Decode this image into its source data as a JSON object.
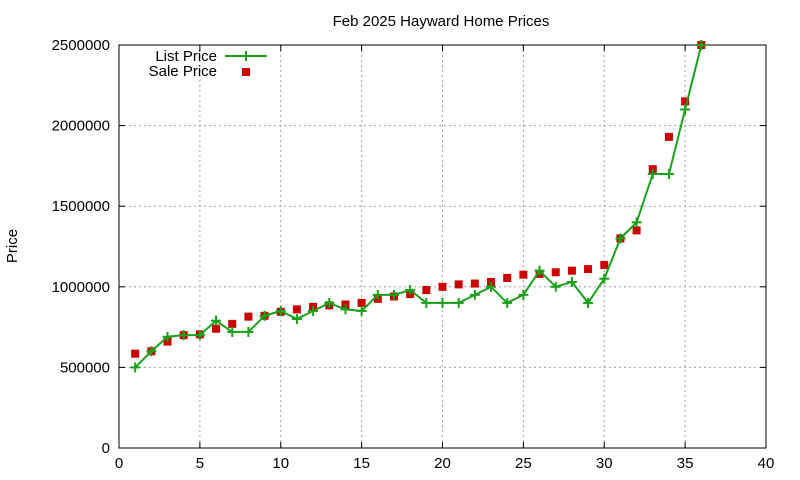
{
  "chart_data": {
    "type": "line",
    "title": "Feb 2025 Hayward Home Prices",
    "xlabel": "",
    "ylabel": "Price",
    "xlim": [
      0,
      40
    ],
    "ylim": [
      0,
      2500000
    ],
    "x_ticks": [
      "0",
      "5",
      "10",
      "15",
      "20",
      "25",
      "30",
      "35",
      "40"
    ],
    "y_ticks": [
      "0",
      "500000",
      "1000000",
      "1500000",
      "2000000",
      "2500000"
    ],
    "grid": true,
    "legend_position": "top-left",
    "series": [
      {
        "name": "List Price",
        "style": "line-with-plus-markers",
        "color": "#1aa01a",
        "x": [
          1,
          2,
          3,
          4,
          5,
          6,
          7,
          8,
          9,
          10,
          11,
          12,
          13,
          14,
          15,
          16,
          17,
          18,
          19,
          20,
          21,
          22,
          23,
          24,
          25,
          26,
          27,
          28,
          29,
          30,
          31,
          32,
          33,
          34,
          35,
          36
        ],
        "y": [
          500000,
          600000,
          690000,
          700000,
          700000,
          790000,
          720000,
          720000,
          820000,
          850000,
          800000,
          850000,
          900000,
          860000,
          850000,
          950000,
          950000,
          980000,
          900000,
          900000,
          900000,
          950000,
          1000000,
          900000,
          950000,
          1100000,
          1000000,
          1030000,
          900000,
          1050000,
          1300000,
          1400000,
          1700000,
          1700000,
          2100000,
          2500000
        ]
      },
      {
        "name": "Sale Price",
        "style": "square-markers",
        "color": "#cc0000",
        "x": [
          1,
          2,
          3,
          4,
          5,
          6,
          7,
          8,
          9,
          10,
          11,
          12,
          13,
          14,
          15,
          16,
          17,
          18,
          19,
          20,
          21,
          22,
          23,
          24,
          25,
          26,
          27,
          28,
          29,
          30,
          31,
          32,
          33,
          34,
          35,
          36
        ],
        "y": [
          585000,
          600000,
          660000,
          700000,
          705000,
          740000,
          770000,
          815000,
          820000,
          845000,
          860000,
          875000,
          885000,
          890000,
          900000,
          925000,
          940000,
          955000,
          980000,
          1000000,
          1015000,
          1020000,
          1030000,
          1055000,
          1075000,
          1080000,
          1090000,
          1100000,
          1110000,
          1135000,
          1300000,
          1350000,
          1730000,
          1930000,
          2150000,
          2500000
        ]
      }
    ]
  }
}
